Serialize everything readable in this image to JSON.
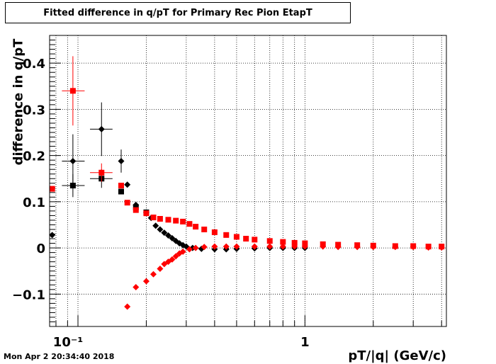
{
  "title": "Fitted difference in q/pT for Primary Rec Pion EtapT",
  "timestamp": "Mon Apr  2 20:34:40 2018",
  "chart_data": {
    "type": "scatter",
    "title": "Fitted difference in q/pT for Primary Rec Pion EtapT",
    "xlabel": "pT/|q| (GeV/c)",
    "ylabel": "difference in q/pT",
    "xscale": "log",
    "xlim": [
      0.075,
      4.2
    ],
    "ylim": [
      -0.17,
      0.46
    ],
    "grid": true,
    "x_tick_labels": [
      "10⁻¹",
      "1"
    ],
    "y_ticks": [
      -0.1,
      0,
      0.1,
      0.2,
      0.3,
      0.4
    ],
    "y_tick_labels": [
      "−0.1",
      "0",
      "0.1",
      "0.2",
      "0.3",
      "0.4"
    ],
    "colors": {
      "black": "#000000",
      "red": "#ff0000"
    },
    "series": [
      {
        "marker": "square",
        "color": "#000000",
        "points": [
          {
            "x": 0.095,
            "y": 0.135,
            "xerr": [
              0.085,
              0.107
            ],
            "yerr": 0.025
          },
          {
            "x": 0.127,
            "y": 0.15,
            "xerr": [
              0.113,
              0.142
            ],
            "yerr": 0.02
          },
          {
            "x": 0.155,
            "y": 0.122
          },
          {
            "x": 0.18,
            "y": 0.088
          },
          {
            "x": 0.2,
            "y": 0.077
          }
        ]
      },
      {
        "marker": "diamond",
        "color": "#000000",
        "points": [
          {
            "x": 0.077,
            "y": 0.028
          },
          {
            "x": 0.095,
            "y": 0.188,
            "xerr": [
              0.085,
              0.107
            ],
            "yerr": 0.058
          },
          {
            "x": 0.127,
            "y": 0.257,
            "xerr": [
              0.113,
              0.142
            ],
            "yerr": 0.058
          },
          {
            "x": 0.155,
            "y": 0.188,
            "yerr": 0.025
          },
          {
            "x": 0.165,
            "y": 0.137
          },
          {
            "x": 0.18,
            "y": 0.093
          },
          {
            "x": 0.2,
            "y": 0.077
          },
          {
            "x": 0.21,
            "y": 0.065
          },
          {
            "x": 0.22,
            "y": 0.048
          },
          {
            "x": 0.23,
            "y": 0.04
          },
          {
            "x": 0.24,
            "y": 0.033
          },
          {
            "x": 0.25,
            "y": 0.027
          },
          {
            "x": 0.26,
            "y": 0.021
          },
          {
            "x": 0.27,
            "y": 0.015
          },
          {
            "x": 0.28,
            "y": 0.01
          },
          {
            "x": 0.29,
            "y": 0.006
          },
          {
            "x": 0.3,
            "y": 0.003
          },
          {
            "x": 0.32,
            "y": 0.0
          },
          {
            "x": 0.35,
            "y": -0.002
          },
          {
            "x": 0.4,
            "y": -0.003
          },
          {
            "x": 0.45,
            "y": -0.003
          },
          {
            "x": 0.5,
            "y": -0.002
          },
          {
            "x": 0.6,
            "y": -0.001
          },
          {
            "x": 0.7,
            "y": 0.0
          },
          {
            "x": 0.8,
            "y": 0.0
          },
          {
            "x": 0.9,
            "y": 0.0
          },
          {
            "x": 1.0,
            "y": 0.0
          }
        ]
      },
      {
        "marker": "square",
        "color": "#ff0000",
        "points": [
          {
            "x": 0.077,
            "y": 0.128
          },
          {
            "x": 0.095,
            "y": 0.34,
            "xerr": [
              0.085,
              0.107
            ],
            "yerr": 0.075
          },
          {
            "x": 0.127,
            "y": 0.163,
            "xerr": [
              0.113,
              0.142
            ],
            "yerr": 0.02
          },
          {
            "x": 0.155,
            "y": 0.135
          },
          {
            "x": 0.165,
            "y": 0.098
          },
          {
            "x": 0.18,
            "y": 0.082
          },
          {
            "x": 0.2,
            "y": 0.075
          },
          {
            "x": 0.215,
            "y": 0.066
          },
          {
            "x": 0.23,
            "y": 0.063
          },
          {
            "x": 0.25,
            "y": 0.061
          },
          {
            "x": 0.27,
            "y": 0.059
          },
          {
            "x": 0.29,
            "y": 0.057
          },
          {
            "x": 0.31,
            "y": 0.052
          },
          {
            "x": 0.33,
            "y": 0.046
          },
          {
            "x": 0.36,
            "y": 0.04
          },
          {
            "x": 0.4,
            "y": 0.034
          },
          {
            "x": 0.45,
            "y": 0.028
          },
          {
            "x": 0.5,
            "y": 0.024
          },
          {
            "x": 0.55,
            "y": 0.02
          },
          {
            "x": 0.6,
            "y": 0.018
          },
          {
            "x": 0.7,
            "y": 0.015
          },
          {
            "x": 0.8,
            "y": 0.013
          },
          {
            "x": 0.9,
            "y": 0.011
          },
          {
            "x": 1.0,
            "y": 0.01
          },
          {
            "x": 1.2,
            "y": 0.008
          },
          {
            "x": 1.4,
            "y": 0.007
          },
          {
            "x": 1.7,
            "y": 0.006
          },
          {
            "x": 2.0,
            "y": 0.005
          },
          {
            "x": 2.5,
            "y": 0.004
          },
          {
            "x": 3.0,
            "y": 0.004
          },
          {
            "x": 3.5,
            "y": 0.003
          },
          {
            "x": 4.0,
            "y": 0.003
          }
        ]
      },
      {
        "marker": "diamond",
        "color": "#ff0000",
        "points": [
          {
            "x": 0.165,
            "y": -0.127
          },
          {
            "x": 0.18,
            "y": -0.085
          },
          {
            "x": 0.2,
            "y": -0.072
          },
          {
            "x": 0.215,
            "y": -0.057
          },
          {
            "x": 0.23,
            "y": -0.045
          },
          {
            "x": 0.24,
            "y": -0.035
          },
          {
            "x": 0.25,
            "y": -0.03
          },
          {
            "x": 0.26,
            "y": -0.025
          },
          {
            "x": 0.27,
            "y": -0.018
          },
          {
            "x": 0.28,
            "y": -0.012
          },
          {
            "x": 0.29,
            "y": -0.008
          },
          {
            "x": 0.31,
            "y": -0.003
          },
          {
            "x": 0.33,
            "y": 0.0
          },
          {
            "x": 0.36,
            "y": 0.002
          },
          {
            "x": 0.4,
            "y": 0.003
          },
          {
            "x": 0.45,
            "y": 0.003
          },
          {
            "x": 0.5,
            "y": 0.003
          },
          {
            "x": 0.6,
            "y": 0.003
          },
          {
            "x": 0.7,
            "y": 0.003
          },
          {
            "x": 0.8,
            "y": 0.003
          },
          {
            "x": 0.9,
            "y": 0.003
          },
          {
            "x": 1.0,
            "y": 0.003
          },
          {
            "x": 1.2,
            "y": 0.003
          },
          {
            "x": 1.4,
            "y": 0.002
          },
          {
            "x": 1.7,
            "y": 0.002
          },
          {
            "x": 2.0,
            "y": 0.002
          },
          {
            "x": 2.5,
            "y": 0.002
          },
          {
            "x": 3.0,
            "y": 0.002
          },
          {
            "x": 3.5,
            "y": 0.001
          },
          {
            "x": 4.0,
            "y": 0.001
          }
        ]
      }
    ]
  }
}
